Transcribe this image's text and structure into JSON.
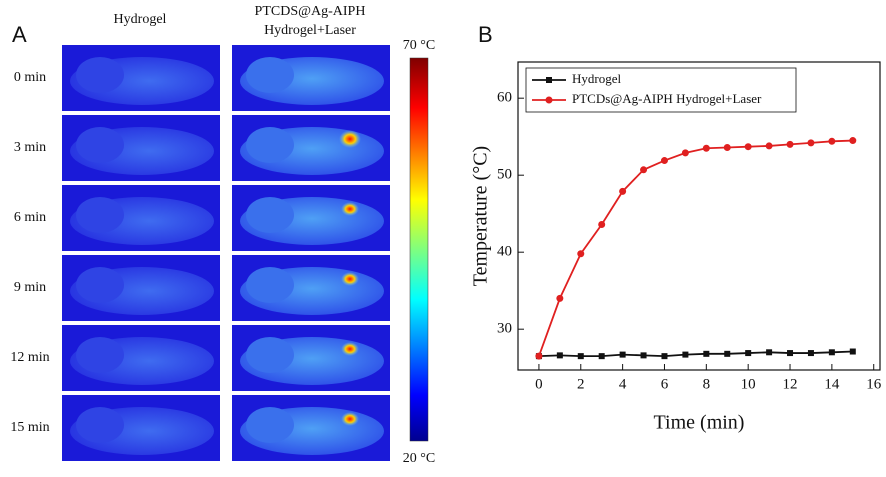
{
  "panel_a": {
    "label": "A",
    "columns": [
      "Hydrogel",
      "PTCDS@Ag-AIPH",
      "Hydrogel+Laser"
    ],
    "rows": [
      "0 min",
      "3 min",
      "6 min",
      "9 min",
      "12 min",
      "15 min"
    ],
    "colorbar_max": "70 °C",
    "colorbar_min": "20 °C"
  },
  "chart_data": {
    "type": "line",
    "panel_label": "B",
    "x_label": "Time (min)",
    "y_label": "Temperature (°C)",
    "x": [
      0,
      1,
      2,
      3,
      4,
      5,
      6,
      7,
      8,
      9,
      10,
      11,
      12,
      13,
      14,
      15
    ],
    "series": [
      {
        "name": "Hydrogel",
        "color": "#111111",
        "marker": "square",
        "values": [
          26.5,
          26.6,
          26.5,
          26.5,
          26.7,
          26.6,
          26.5,
          26.7,
          26.8,
          26.8,
          26.9,
          27.0,
          26.9,
          26.9,
          27.0,
          27.1
        ]
      },
      {
        "name": "PTCDs@Ag-AIPH Hydrogel+Laser",
        "color": "#e02020",
        "marker": "circle",
        "values": [
          26.5,
          34.0,
          39.8,
          43.6,
          47.9,
          50.7,
          51.9,
          52.9,
          53.5,
          53.6,
          53.7,
          53.8,
          54.0,
          54.2,
          54.4,
          54.5
        ]
      }
    ],
    "xlim": [
      -1,
      16.3
    ],
    "ylim": [
      24.7,
      64.7
    ],
    "xticks": [
      0,
      2,
      4,
      6,
      8,
      10,
      12,
      14,
      16
    ],
    "yticks": [
      30,
      40,
      50,
      60
    ],
    "legend": "upper left"
  }
}
